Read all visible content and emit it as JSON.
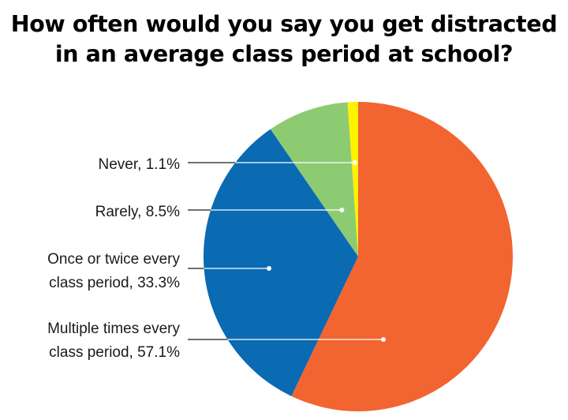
{
  "chart_data": {
    "type": "pie",
    "title_lines": [
      "How often would you say you get distracted",
      "in an average class period at school?"
    ],
    "slices": [
      {
        "label_lines": [
          "Never, 1.1%"
        ],
        "value": 1.1,
        "color": "#fff200"
      },
      {
        "label_lines": [
          "Rarely, 8.5%"
        ],
        "value": 8.5,
        "color": "#8dcb73"
      },
      {
        "label_lines": [
          "Once or twice every",
          "class period, 33.3%"
        ],
        "value": 33.3,
        "color": "#0a6ab2"
      },
      {
        "label_lines": [
          "Multiple times every",
          "class period, 57.1%"
        ],
        "value": 57.1,
        "color": "#f26430"
      }
    ],
    "start_angle_deg": 90,
    "direction": "counterclockwise",
    "legend": "callout-left"
  }
}
